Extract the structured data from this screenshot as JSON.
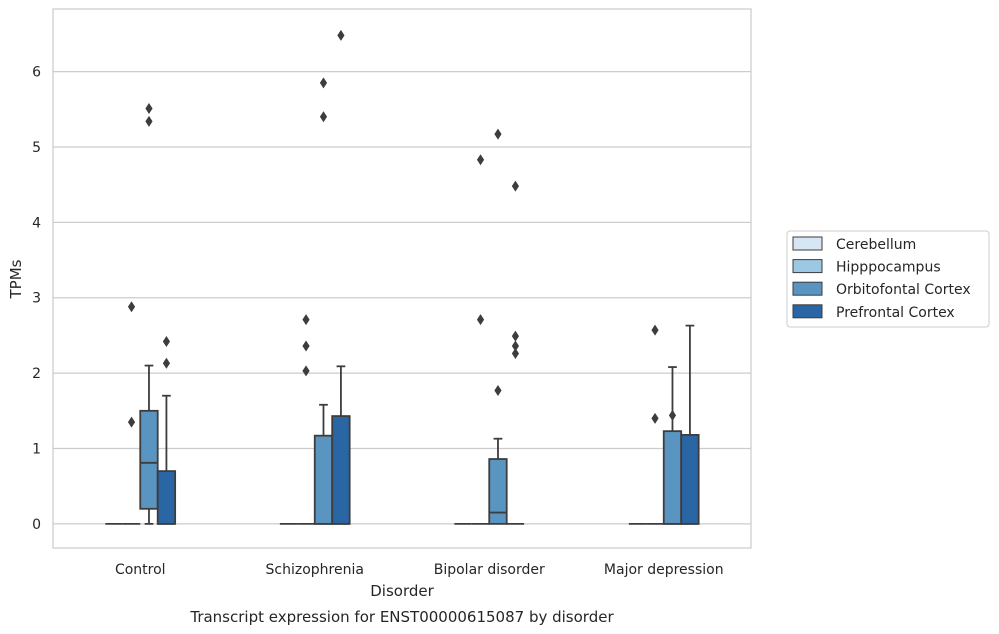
{
  "chart_data": {
    "type": "box",
    "title": "",
    "caption": "Transcript expression for ENST00000615087 by disorder",
    "xlabel": "Disorder",
    "ylabel": "TPMs",
    "ylim": [
      -0.32,
      6.83
    ],
    "yticks": [
      0,
      1,
      2,
      3,
      4,
      5,
      6
    ],
    "grid": true,
    "legend_position": "right",
    "categories": [
      "Control",
      "Schizophrenia",
      "Bipolar disorder",
      "Major depression"
    ],
    "series": [
      {
        "name": "Cerebellum",
        "color": "#d6e6f4",
        "boxes": [
          {
            "q1": 0,
            "median": 0,
            "q3": 0,
            "whisker_low": 0,
            "whisker_high": 0,
            "outliers": []
          },
          {
            "q1": 0,
            "median": 0,
            "q3": 0,
            "whisker_low": 0,
            "whisker_high": 0,
            "outliers": []
          },
          {
            "q1": 0,
            "median": 0,
            "q3": 0,
            "whisker_low": 0,
            "whisker_high": 0,
            "outliers": []
          },
          {
            "q1": 0,
            "median": 0,
            "q3": 0,
            "whisker_low": 0,
            "whisker_high": 0,
            "outliers": []
          }
        ]
      },
      {
        "name": "Hipppocampus",
        "color": "#9cc8e3",
        "boxes": [
          {
            "q1": 0,
            "median": 0,
            "q3": 0,
            "whisker_low": 0,
            "whisker_high": 0,
            "outliers": [
              1.35,
              2.88
            ]
          },
          {
            "q1": 0,
            "median": 0,
            "q3": 0,
            "whisker_low": 0,
            "whisker_high": 0,
            "outliers": [
              2.03,
              2.36,
              2.71
            ]
          },
          {
            "q1": 0,
            "median": 0,
            "q3": 0,
            "whisker_low": 0,
            "whisker_high": 0,
            "outliers": [
              2.71,
              4.83
            ]
          },
          {
            "q1": 0,
            "median": 0,
            "q3": 0,
            "whisker_low": 0,
            "whisker_high": 0,
            "outliers": [
              1.4,
              2.57
            ]
          }
        ]
      },
      {
        "name": "Orbitofontal Cortex",
        "color": "#5a95c2",
        "boxes": [
          {
            "q1": 0.2,
            "median": 0.81,
            "q3": 1.5,
            "whisker_low": 0,
            "whisker_high": 2.1,
            "outliers": [
              5.34,
              5.51
            ]
          },
          {
            "q1": 0,
            "median": 0,
            "q3": 1.17,
            "whisker_low": 0,
            "whisker_high": 1.58,
            "outliers": [
              5.4,
              5.85
            ]
          },
          {
            "q1": 0,
            "median": 0.15,
            "q3": 0.86,
            "whisker_low": 0,
            "whisker_high": 1.13,
            "outliers": [
              1.77,
              5.17
            ]
          },
          {
            "q1": 0,
            "median": 0,
            "q3": 1.23,
            "whisker_low": 0,
            "whisker_high": 2.08,
            "outliers": [
              1.44
            ]
          }
        ]
      },
      {
        "name": "Prefrontal Cortex",
        "color": "#2a65a4",
        "boxes": [
          {
            "q1": 0,
            "median": 0,
            "q3": 0.7,
            "whisker_low": 0,
            "whisker_high": 1.7,
            "outliers": [
              2.13,
              2.42
            ]
          },
          {
            "q1": 0,
            "median": 0,
            "q3": 1.43,
            "whisker_low": 0,
            "whisker_high": 2.09,
            "outliers": [
              6.48
            ]
          },
          {
            "q1": 0,
            "median": 0,
            "q3": 0,
            "whisker_low": 0,
            "whisker_high": 0,
            "outliers": [
              2.26,
              2.36,
              2.49,
              4.48
            ]
          },
          {
            "q1": 0,
            "median": 0,
            "q3": 1.18,
            "whisker_low": 0,
            "whisker_high": 2.63,
            "outliers": []
          }
        ]
      }
    ]
  }
}
